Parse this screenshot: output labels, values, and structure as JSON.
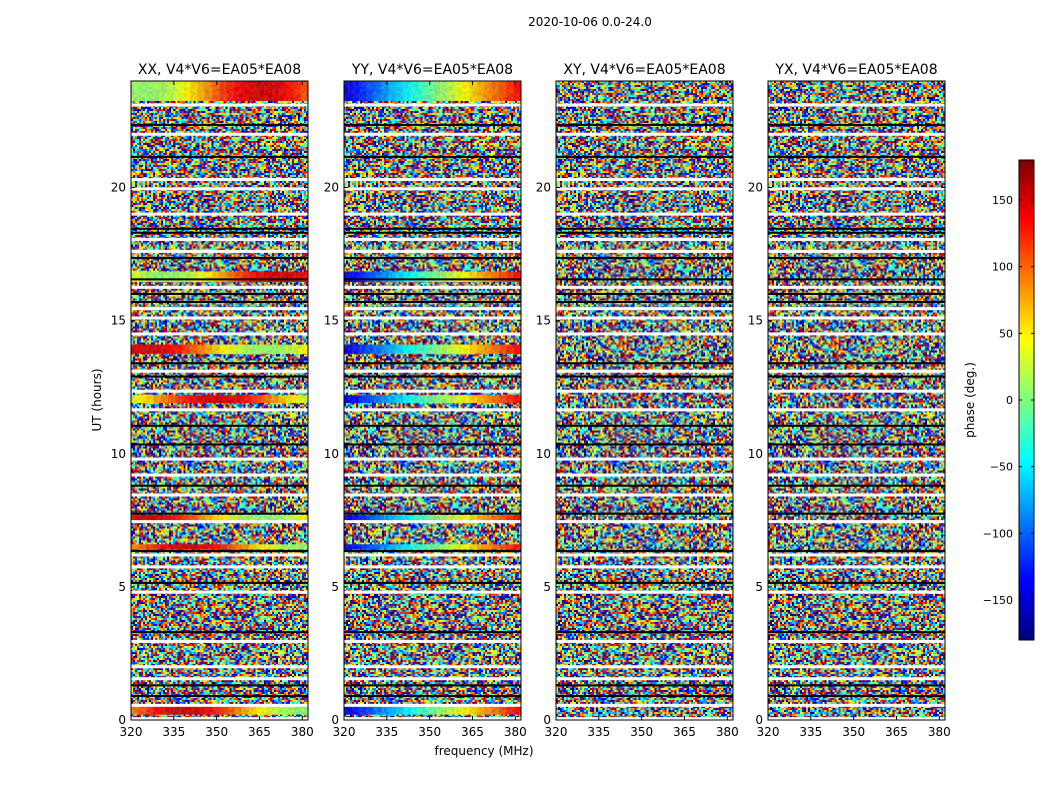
{
  "chart_data": {
    "type": "heatmap",
    "title": "2020-10-06 0.0-24.0",
    "xlabel": "frequency (MHz)",
    "ylabel": "UT (hours)",
    "xlim": [
      320,
      382
    ],
    "ylim": [
      0,
      24
    ],
    "x_ticks": [
      320,
      335,
      350,
      365,
      380
    ],
    "x_tick_labels": [
      "320",
      "335",
      "350",
      "365",
      "380"
    ],
    "y_ticks": [
      0,
      5,
      10,
      15,
      20
    ],
    "y_tick_labels": [
      "0",
      "5",
      "10",
      "15",
      "20"
    ],
    "colorbar": {
      "label": "phase (deg.)",
      "range": [
        -180,
        180
      ],
      "ticks": [
        150,
        100,
        50,
        0,
        -50,
        -100,
        -150
      ],
      "tick_labels": [
        "150",
        "100",
        "50",
        "0",
        "−50",
        "−100",
        "−150"
      ],
      "colormap": "jet",
      "colors": [
        "#00007f",
        "#0000ff",
        "#00ffff",
        "#7fff7f",
        "#ffff00",
        "#ff0000",
        "#7f0000"
      ]
    },
    "panels": [
      {
        "name": "XX",
        "title": "XX, V4*V6=EA05*EA08"
      },
      {
        "name": "YY",
        "title": "YY, V4*V6=EA05*EA08"
      },
      {
        "name": "XY",
        "title": "XY, V4*V6=EA05*EA08"
      },
      {
        "name": "YX",
        "title": "YX, V4*V6=EA05*EA08"
      }
    ],
    "flagged_hours_white": [
      0.05,
      0.55,
      1.55,
      2.0,
      2.95,
      4.8,
      5.75,
      6.2,
      7.45,
      8.45,
      9.2,
      9.8,
      11.65,
      12.35,
      13.1,
      14.5,
      15.1,
      15.45,
      16.25,
      17.6,
      18.05,
      19.0,
      19.95,
      20.3,
      22.0,
      23.1
    ],
    "flagged_hours_black": [
      0.9,
      1.3,
      3.3,
      5.15,
      6.35,
      7.75,
      8.8,
      10.35,
      11.05,
      12.9,
      13.4,
      15.7,
      16.0,
      16.55,
      17.35,
      18.3,
      18.45,
      21.15,
      22.35
    ]
  }
}
